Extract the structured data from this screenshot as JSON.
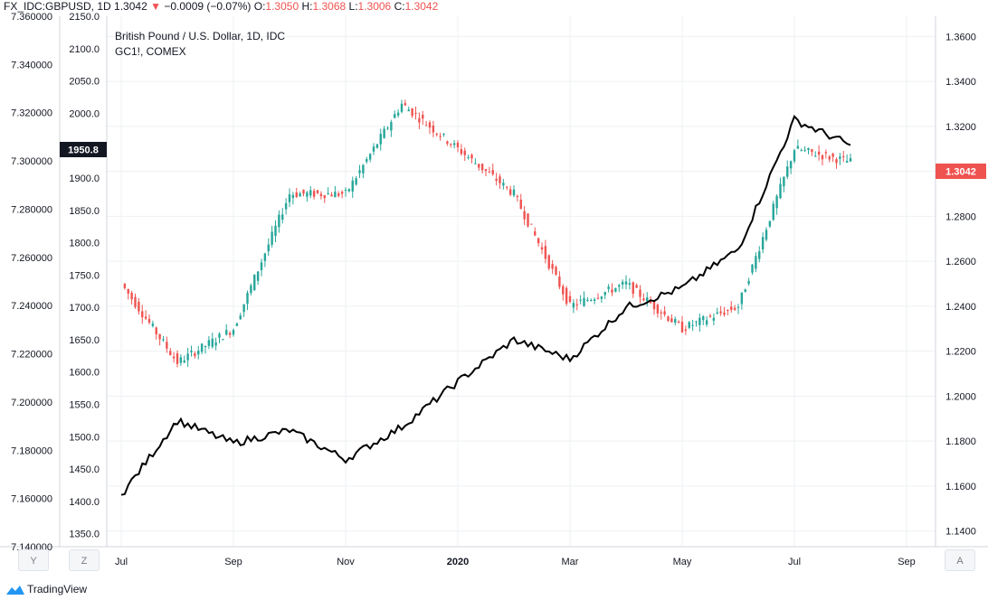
{
  "header": {
    "symbol": "FX_IDC:GBPUSD, 1D",
    "last": "1.3042",
    "arrow": "▼",
    "change": "−0.0009 (−0.07%)",
    "o_label": "O:",
    "o_value": "1.3050",
    "h_label": "H:",
    "h_value": "1.3068",
    "l_label": "L:",
    "l_value": "1.3006",
    "c_label": "C:",
    "c_value": "1.3042"
  },
  "legend": {
    "title": "British Pound / U.S. Dollar, 1D, IDC",
    "overlay": "GC1!, COMEX"
  },
  "buttons": {
    "left": "Y",
    "mid": "Z",
    "right": "A"
  },
  "footer": {
    "brand": "TradingView"
  },
  "colors": {
    "up": "#26a69a",
    "down": "#ef5350",
    "line": "#000000",
    "grid": "#eef0f3"
  },
  "chart_data": {
    "type": "candlestick+line",
    "x_ticks": [
      "Jul",
      "Sep",
      "Nov",
      "2020",
      "Mar",
      "May",
      "Jul",
      "Sep"
    ],
    "left_axis_1": {
      "ticks": [
        "7.360000",
        "7.340000",
        "7.320000",
        "7.300000",
        "7.280000",
        "7.260000",
        "7.240000",
        "7.220000",
        "7.200000",
        "7.180000",
        "7.160000",
        "7.140000"
      ],
      "range": [
        7.14,
        7.36
      ]
    },
    "left_axis_2": {
      "name": "GC1!",
      "ticks": [
        "2150.0",
        "2100.0",
        "2050.0",
        "2000.0",
        "1950.0",
        "1900.0",
        "1850.0",
        "1800.0",
        "1750.0",
        "1700.0",
        "1650.0",
        "1600.0",
        "1550.0",
        "1500.0",
        "1450.0",
        "1400.0",
        "1350.0"
      ],
      "range": [
        1330,
        2150
      ],
      "current_label": "1950.8"
    },
    "right_axis": {
      "ticks": [
        "1.3600",
        "1.3400",
        "1.3200",
        "1.3000",
        "1.2800",
        "1.2600",
        "1.2400",
        "1.2200",
        "1.2000",
        "1.1800",
        "1.1600",
        "1.1400"
      ],
      "range": [
        1.133,
        1.369
      ],
      "current_label": "1.3042"
    },
    "gbpusd_close_monthly": [
      {
        "x": "Jul 2019",
        "close": 1.25
      },
      {
        "x": "Aug 2019",
        "close": 1.215
      },
      {
        "x": "Sep 2019",
        "close": 1.23
      },
      {
        "x": "Oct 2019",
        "close": 1.29
      },
      {
        "x": "Nov 2019",
        "close": 1.29
      },
      {
        "x": "Dec 2019",
        "close": 1.33
      },
      {
        "x": "Jan 2020",
        "close": 1.31
      },
      {
        "x": "Feb 2020",
        "close": 1.29
      },
      {
        "x": "Mar 2020",
        "close": 1.24
      },
      {
        "x": "Apr 2020",
        "close": 1.25
      },
      {
        "x": "May 2020",
        "close": 1.23
      },
      {
        "x": "Jun 2020",
        "close": 1.24
      },
      {
        "x": "Jul 2020",
        "close": 1.31
      },
      {
        "x": "Aug 2020",
        "close": 1.3042
      }
    ],
    "gold_close_monthly": [
      {
        "x": "Jul 2019",
        "close": 1410
      },
      {
        "x": "Aug 2019",
        "close": 1525
      },
      {
        "x": "Sep 2019",
        "close": 1490
      },
      {
        "x": "Oct 2019",
        "close": 1510
      },
      {
        "x": "Nov 2019",
        "close": 1465
      },
      {
        "x": "Dec 2019",
        "close": 1515
      },
      {
        "x": "Jan 2020",
        "close": 1585
      },
      {
        "x": "Feb 2020",
        "close": 1650
      },
      {
        "x": "Mar 2020",
        "close": 1620
      },
      {
        "x": "Apr 2020",
        "close": 1700
      },
      {
        "x": "May 2020",
        "close": 1730
      },
      {
        "x": "Jun 2020",
        "close": 1790
      },
      {
        "x": "Jul 2020",
        "close": 1990
      },
      {
        "x": "Aug 2020",
        "close": 1950.8
      }
    ]
  }
}
